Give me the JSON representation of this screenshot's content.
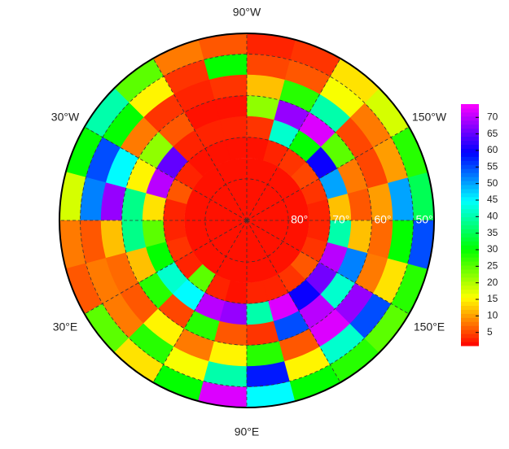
{
  "map": {
    "type": "polar-grid",
    "lon_labels": [
      "90°W",
      "30°W",
      "150°W",
      "30°E",
      "150°E",
      "90°E"
    ],
    "lat_labels": [
      {
        "value": 80,
        "label": "80°"
      },
      {
        "value": 70,
        "label": "70°"
      },
      {
        "value": 60,
        "label": "60°"
      },
      {
        "value": 50,
        "label": "50°"
      }
    ],
    "lat_bands": [
      45,
      50,
      55,
      60,
      65,
      70,
      75
    ],
    "lon_edges": [
      -180,
      -165,
      -150,
      -135,
      -120,
      -105,
      -90,
      -75,
      -60,
      -45,
      -30,
      -15,
      0,
      15,
      30,
      45,
      60,
      75,
      90,
      105,
      120,
      135,
      150,
      165,
      180
    ],
    "cap": 2,
    "cells": [
      [
        35,
        50,
        10,
        6,
        12,
        3
      ],
      [
        28,
        10,
        5,
        8,
        50,
        4
      ],
      [
        18,
        8,
        5,
        25,
        60,
        5
      ],
      [
        14,
        16,
        40,
        72,
        30,
        4
      ],
      [
        4,
        6,
        28,
        68,
        42,
        3
      ],
      [
        3,
        5,
        12,
        22,
        4,
        2
      ],
      [
        6,
        30,
        4,
        2,
        3,
        2
      ],
      [
        8,
        4,
        3,
        2,
        3,
        2
      ],
      [
        25,
        15,
        4,
        6,
        3,
        2
      ],
      [
        40,
        30,
        8,
        22,
        65,
        3
      ],
      [
        30,
        55,
        45,
        15,
        70,
        6
      ],
      [
        18,
        52,
        68,
        38,
        14,
        3
      ],
      [
        8,
        6,
        12,
        38,
        25,
        3
      ],
      [
        6,
        8,
        7,
        12,
        30,
        4
      ],
      [
        25,
        8,
        6,
        28,
        42,
        3
      ],
      [
        14,
        28,
        15,
        5,
        45,
        25
      ],
      [
        30,
        16,
        8,
        28,
        70,
        3
      ],
      [
        72,
        40,
        15,
        6,
        68,
        2
      ],
      [
        45,
        58,
        28,
        4,
        40,
        3
      ],
      [
        30,
        15,
        6,
        55,
        72,
        3
      ],
      [
        28,
        42,
        72,
        70,
        60,
        4
      ],
      [
        25,
        55,
        68,
        42,
        66,
        6
      ],
      [
        28,
        14,
        8,
        52,
        70,
        4
      ],
      [
        55,
        30,
        7,
        12,
        40,
        3
      ]
    ],
    "colorbar": {
      "lim": [
        1,
        74
      ],
      "ticks": [
        5,
        10,
        15,
        20,
        25,
        30,
        35,
        40,
        45,
        50,
        55,
        60,
        65,
        70
      ]
    }
  }
}
